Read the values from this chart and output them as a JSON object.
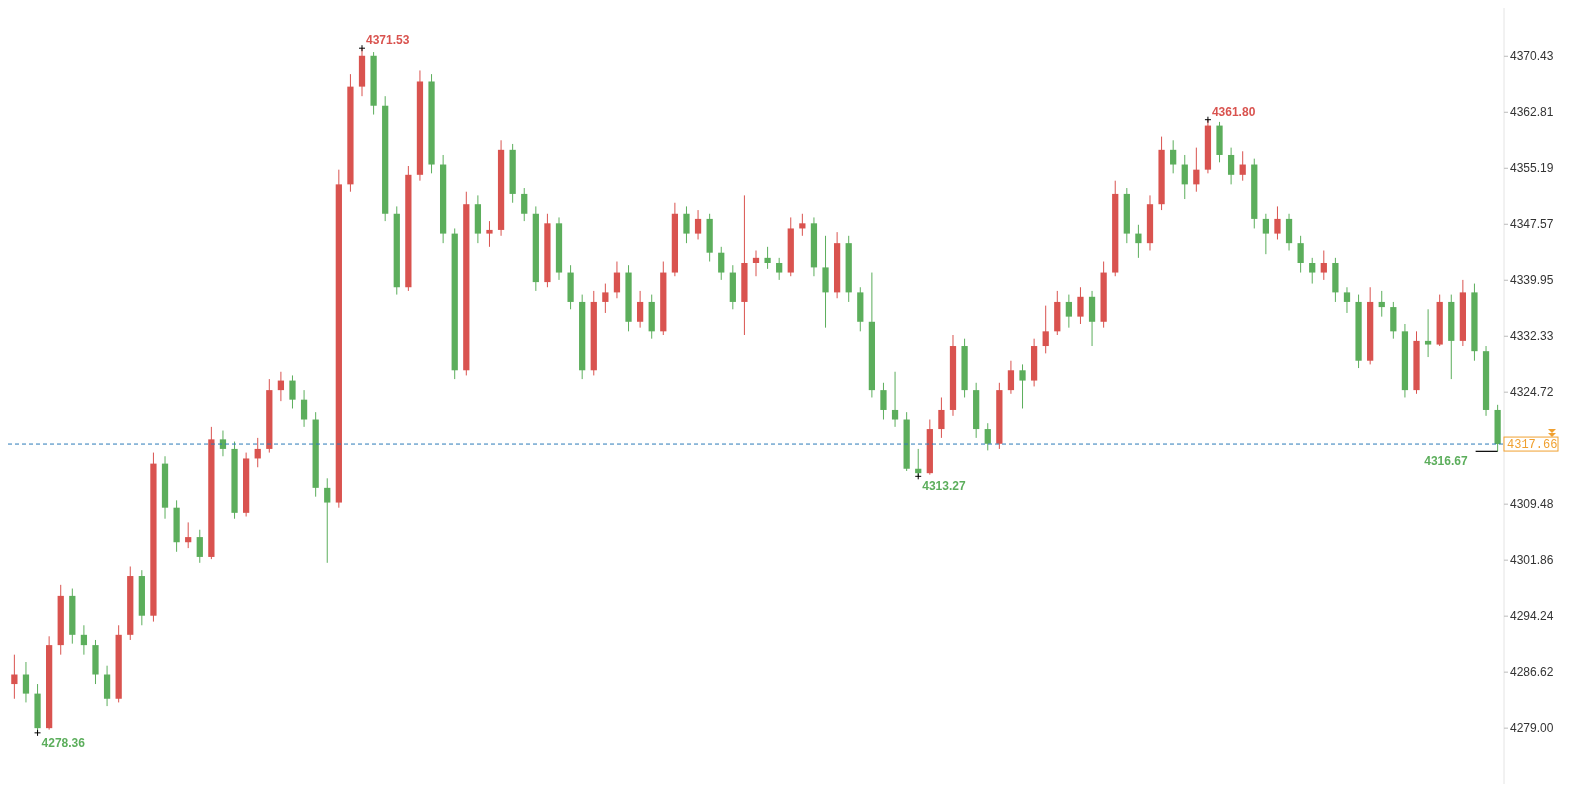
{
  "chart_data": {
    "type": "candlestick",
    "categories": [
      null,
      null,
      null,
      null,
      null,
      null,
      null,
      null,
      null,
      null,
      null,
      null,
      null,
      null,
      null,
      null,
      null,
      null,
      null,
      null,
      null,
      null,
      null,
      null,
      null,
      null,
      null,
      null,
      null,
      null,
      null,
      null,
      null,
      null,
      null,
      null,
      null,
      null,
      null,
      null,
      null,
      null,
      null,
      null,
      null,
      null,
      null,
      null,
      null,
      null,
      null,
      null,
      null,
      null,
      null,
      null,
      null,
      null,
      null,
      null,
      null,
      null,
      null,
      null,
      null,
      null,
      null,
      null,
      null,
      null,
      null,
      null,
      null,
      null,
      null,
      null,
      null,
      null,
      null,
      null,
      null,
      null,
      null,
      null,
      null,
      null,
      null,
      null,
      null,
      null,
      null,
      null,
      null,
      null,
      null,
      null,
      null,
      null,
      null,
      null,
      null,
      null,
      null,
      null,
      null,
      null,
      null,
      null,
      null,
      null,
      null,
      null,
      null,
      null,
      null,
      null,
      null,
      null,
      null,
      null,
      null,
      null,
      null,
      null,
      null,
      null,
      null,
      null,
      null
    ],
    "ohlc": [
      [
        4285.0,
        4289.0,
        4283.0,
        4286.3
      ],
      [
        4286.3,
        4288.0,
        4282.5,
        4283.7
      ],
      [
        4283.7,
        4285.0,
        4278.36,
        4279.0
      ],
      [
        4279.0,
        4291.5,
        4278.8,
        4290.3
      ],
      [
        4290.3,
        4298.5,
        4289.0,
        4297.0
      ],
      [
        4297.0,
        4298.0,
        4290.5,
        4291.7
      ],
      [
        4291.7,
        4293.0,
        4289.0,
        4290.3
      ],
      [
        4290.3,
        4291.0,
        4285.0,
        4286.3
      ],
      [
        4286.3,
        4287.5,
        4282.0,
        4283.0
      ],
      [
        4283.0,
        4293.0,
        4282.5,
        4291.7
      ],
      [
        4291.7,
        4301.0,
        4291.0,
        4299.7
      ],
      [
        4299.7,
        4300.5,
        4293.0,
        4294.3
      ],
      [
        4294.3,
        4316.5,
        4293.5,
        4315.0
      ],
      [
        4315.0,
        4316.0,
        4307.5,
        4309.0
      ],
      [
        4309.0,
        4310.0,
        4303.0,
        4304.3
      ],
      [
        4304.3,
        4307.0,
        4303.5,
        4305.0
      ],
      [
        4305.0,
        4306.0,
        4301.5,
        4302.3
      ],
      [
        4302.3,
        4320.0,
        4302.0,
        4318.3
      ],
      [
        4318.3,
        4319.5,
        4316.0,
        4317.0
      ],
      [
        4317.0,
        4318.0,
        4307.5,
        4308.3
      ],
      [
        4308.3,
        4316.5,
        4307.8,
        4315.7
      ],
      [
        4315.7,
        4318.5,
        4314.5,
        4317.0
      ],
      [
        4317.0,
        4326.5,
        4316.5,
        4325.0
      ],
      [
        4325.0,
        4327.5,
        4323.5,
        4326.3
      ],
      [
        4326.3,
        4327.0,
        4322.5,
        4323.7
      ],
      [
        4323.7,
        4325.0,
        4320.0,
        4321.0
      ],
      [
        4321.0,
        4322.0,
        4310.5,
        4311.7
      ],
      [
        4311.7,
        4313.0,
        4301.5,
        4309.7
      ],
      [
        4309.7,
        4355.0,
        4309.0,
        4353.0
      ],
      [
        4353.0,
        4368.0,
        4352.0,
        4366.3
      ],
      [
        4366.3,
        4371.53,
        4365.0,
        4370.5
      ],
      [
        4370.5,
        4371.0,
        4362.5,
        4363.7
      ],
      [
        4363.7,
        4365.0,
        4348.0,
        4349.0
      ],
      [
        4349.0,
        4350.0,
        4338.0,
        4339.0
      ],
      [
        4339.0,
        4355.5,
        4338.5,
        4354.3
      ],
      [
        4354.3,
        4368.5,
        4353.5,
        4367.0
      ],
      [
        4367.0,
        4368.0,
        4354.5,
        4355.7
      ],
      [
        4355.7,
        4357.0,
        4345.0,
        4346.3
      ],
      [
        4346.3,
        4347.0,
        4326.5,
        4327.7
      ],
      [
        4327.7,
        4352.0,
        4327.0,
        4350.3
      ],
      [
        4350.3,
        4351.5,
        4345.0,
        4346.3
      ],
      [
        4346.3,
        4348.0,
        4344.5,
        4346.8
      ],
      [
        4346.8,
        4359.0,
        4346.0,
        4357.7
      ],
      [
        4357.7,
        4358.5,
        4350.5,
        4351.7
      ],
      [
        4351.7,
        4352.5,
        4348.0,
        4349.0
      ],
      [
        4349.0,
        4350.0,
        4338.5,
        4339.7
      ],
      [
        4339.7,
        4349.0,
        4339.0,
        4347.7
      ],
      [
        4347.7,
        4348.5,
        4340.0,
        4341.0
      ],
      [
        4341.0,
        4342.0,
        4336.0,
        4337.0
      ],
      [
        4337.0,
        4338.0,
        4326.5,
        4327.7
      ],
      [
        4327.7,
        4338.5,
        4327.0,
        4337.0
      ],
      [
        4337.0,
        4339.5,
        4335.5,
        4338.3
      ],
      [
        4338.3,
        4342.5,
        4337.5,
        4341.0
      ],
      [
        4341.0,
        4342.0,
        4333.0,
        4334.3
      ],
      [
        4334.3,
        4338.5,
        4333.5,
        4337.0
      ],
      [
        4337.0,
        4338.0,
        4332.0,
        4333.0
      ],
      [
        4333.0,
        4342.5,
        4332.5,
        4341.0
      ],
      [
        4341.0,
        4350.5,
        4340.5,
        4349.0
      ],
      [
        4349.0,
        4350.0,
        4345.0,
        4346.3
      ],
      [
        4346.3,
        4349.5,
        4345.5,
        4348.3
      ],
      [
        4348.3,
        4349.0,
        4342.5,
        4343.7
      ],
      [
        4343.7,
        4344.5,
        4340.0,
        4341.0
      ],
      [
        4341.0,
        4342.0,
        4336.0,
        4337.0
      ],
      [
        4337.0,
        4351.5,
        4332.5,
        4342.3
      ],
      [
        4342.3,
        4344.0,
        4340.5,
        4343.0
      ],
      [
        4343.0,
        4344.5,
        4341.5,
        4342.3
      ],
      [
        4342.3,
        4343.0,
        4340.0,
        4341.0
      ],
      [
        4341.0,
        4348.5,
        4340.5,
        4347.0
      ],
      [
        4347.0,
        4349.0,
        4346.0,
        4347.7
      ],
      [
        4347.7,
        4348.5,
        4340.5,
        4341.7
      ],
      [
        4341.7,
        4346.0,
        4333.5,
        4338.3
      ],
      [
        4338.3,
        4346.5,
        4337.5,
        4345.0
      ],
      [
        4345.0,
        4346.0,
        4337.0,
        4338.3
      ],
      [
        4338.3,
        4339.0,
        4333.0,
        4334.3
      ],
      [
        4334.3,
        4341.0,
        4324.0,
        4325.0
      ],
      [
        4325.0,
        4326.0,
        4321.0,
        4322.3
      ],
      [
        4322.3,
        4327.5,
        4320.0,
        4321.0
      ],
      [
        4321.0,
        4322.0,
        4314.0,
        4314.3
      ],
      [
        4314.3,
        4317.0,
        4313.27,
        4313.7
      ],
      [
        4313.7,
        4321.0,
        4313.5,
        4319.7
      ],
      [
        4319.7,
        4324.0,
        4318.5,
        4322.3
      ],
      [
        4322.3,
        4332.5,
        4321.5,
        4331.0
      ],
      [
        4331.0,
        4332.0,
        4324.0,
        4325.0
      ],
      [
        4325.0,
        4326.0,
        4318.5,
        4319.7
      ],
      [
        4319.7,
        4320.5,
        4316.8,
        4317.7
      ],
      [
        4317.7,
        4326.0,
        4317.0,
        4325.0
      ],
      [
        4325.0,
        4329.0,
        4324.5,
        4327.7
      ],
      [
        4327.7,
        4328.5,
        4322.5,
        4326.3
      ],
      [
        4326.3,
        4332.0,
        4325.5,
        4331.0
      ],
      [
        4331.0,
        4336.5,
        4330.0,
        4333.0
      ],
      [
        4333.0,
        4338.5,
        4332.5,
        4337.0
      ],
      [
        4337.0,
        4338.0,
        4333.5,
        4335.0
      ],
      [
        4335.0,
        4339.0,
        4334.0,
        4337.7
      ],
      [
        4337.7,
        4338.5,
        4331.0,
        4334.3
      ],
      [
        4334.3,
        4342.5,
        4333.5,
        4341.0
      ],
      [
        4341.0,
        4353.5,
        4340.5,
        4351.7
      ],
      [
        4351.7,
        4352.5,
        4345.0,
        4346.3
      ],
      [
        4346.3,
        4347.5,
        4343.0,
        4345.0
      ],
      [
        4345.0,
        4351.5,
        4344.0,
        4350.3
      ],
      [
        4350.3,
        4359.5,
        4349.5,
        4357.7
      ],
      [
        4357.7,
        4359.0,
        4354.5,
        4355.7
      ],
      [
        4355.7,
        4357.0,
        4351.0,
        4353.0
      ],
      [
        4353.0,
        4358.0,
        4352.0,
        4355.0
      ],
      [
        4355.0,
        4361.8,
        4354.5,
        4361.0
      ],
      [
        4361.0,
        4361.5,
        4356.0,
        4357.0
      ],
      [
        4357.0,
        4358.0,
        4353.0,
        4354.3
      ],
      [
        4354.3,
        4357.5,
        4353.5,
        4355.7
      ],
      [
        4355.7,
        4356.5,
        4347.0,
        4348.3
      ],
      [
        4348.3,
        4349.0,
        4343.5,
        4346.3
      ],
      [
        4346.3,
        4350.0,
        4345.5,
        4348.3
      ],
      [
        4348.3,
        4349.0,
        4344.0,
        4345.0
      ],
      [
        4345.0,
        4346.0,
        4341.0,
        4342.3
      ],
      [
        4342.3,
        4343.0,
        4339.5,
        4341.0
      ],
      [
        4341.0,
        4344.0,
        4340.0,
        4342.3
      ],
      [
        4342.3,
        4343.0,
        4337.0,
        4338.3
      ],
      [
        4338.3,
        4339.0,
        4335.5,
        4337.0
      ],
      [
        4337.0,
        4338.0,
        4328.0,
        4329.0
      ],
      [
        4329.0,
        4339.0,
        4328.5,
        4337.0
      ],
      [
        4337.0,
        4338.5,
        4335.0,
        4336.3
      ],
      [
        4336.3,
        4337.0,
        4332.0,
        4333.0
      ],
      [
        4333.0,
        4334.0,
        4324.0,
        4325.0
      ],
      [
        4325.0,
        4333.0,
        4324.5,
        4331.7
      ],
      [
        4331.7,
        4336.0,
        4329.5,
        4331.2
      ],
      [
        4331.2,
        4338.0,
        4331.0,
        4337.0
      ],
      [
        4337.0,
        4338.0,
        4326.5,
        4331.7
      ],
      [
        4331.7,
        4340.0,
        4331.0,
        4338.3
      ],
      [
        4338.3,
        4339.5,
        4329.0,
        4330.3
      ],
      [
        4330.3,
        4331.0,
        4321.5,
        4322.3
      ],
      [
        4322.3,
        4323.0,
        4316.67,
        4317.66
      ]
    ],
    "colors": [
      "#d9534f",
      "#5cae5c",
      "#5cae5c",
      "#d9534f",
      "#d9534f",
      "#5cae5c",
      "#5cae5c",
      "#5cae5c",
      "#5cae5c",
      "#d9534f",
      "#d9534f",
      "#5cae5c",
      "#d9534f",
      "#5cae5c",
      "#5cae5c",
      "#d9534f",
      "#5cae5c",
      "#d9534f",
      "#5cae5c",
      "#5cae5c",
      "#d9534f",
      "#d9534f",
      "#d9534f",
      "#d9534f",
      "#5cae5c",
      "#5cae5c",
      "#5cae5c",
      "#5cae5c",
      "#d9534f",
      "#d9534f",
      "#d9534f",
      "#5cae5c",
      "#5cae5c",
      "#5cae5c",
      "#d9534f",
      "#d9534f",
      "#5cae5c",
      "#5cae5c",
      "#5cae5c",
      "#d9534f",
      "#5cae5c",
      "#d9534f",
      "#d9534f",
      "#5cae5c",
      "#5cae5c",
      "#5cae5c",
      "#d9534f",
      "#5cae5c",
      "#5cae5c",
      "#5cae5c",
      "#d9534f",
      "#d9534f",
      "#d9534f",
      "#5cae5c",
      "#d9534f",
      "#5cae5c",
      "#d9534f",
      "#d9534f",
      "#5cae5c",
      "#d9534f",
      "#5cae5c",
      "#5cae5c",
      "#5cae5c",
      "#d9534f",
      "#d9534f",
      "#5cae5c",
      "#5cae5c",
      "#d9534f",
      "#d9534f",
      "#5cae5c",
      "#5cae5c",
      "#d9534f",
      "#5cae5c",
      "#5cae5c",
      "#5cae5c",
      "#5cae5c",
      "#5cae5c",
      "#5cae5c",
      "#5cae5c",
      "#d9534f",
      "#d9534f",
      "#d9534f",
      "#5cae5c",
      "#5cae5c",
      "#5cae5c",
      "#d9534f",
      "#d9534f",
      "#5cae5c",
      "#d9534f",
      "#d9534f",
      "#d9534f",
      "#5cae5c",
      "#d9534f",
      "#5cae5c",
      "#d9534f",
      "#d9534f",
      "#5cae5c",
      "#5cae5c",
      "#d9534f",
      "#d9534f",
      "#5cae5c",
      "#5cae5c",
      "#d9534f",
      "#d9534f",
      "#5cae5c",
      "#5cae5c",
      "#d9534f",
      "#5cae5c",
      "#5cae5c",
      "#d9534f",
      "#5cae5c",
      "#5cae5c",
      "#5cae5c",
      "#d9534f",
      "#5cae5c",
      "#5cae5c",
      "#5cae5c",
      "#d9534f",
      "#5cae5c",
      "#5cae5c",
      "#5cae5c",
      "#d9534f",
      "#5cae5c",
      "#d9534f",
      "#5cae5c",
      "#d9534f",
      "#5cae5c",
      "#5cae5c",
      "#5cae5c"
    ],
    "ylim": [
      4271.4,
      4377.0
    ],
    "yticks": [
      {
        "value": 4279.0,
        "label": "4279.00"
      },
      {
        "value": 4286.62,
        "label": "4286.62"
      },
      {
        "value": 4294.24,
        "label": "4294.24"
      },
      {
        "value": 4301.86,
        "label": "4301.86"
      },
      {
        "value": 4309.48,
        "label": "4309.48"
      },
      {
        "value": 4324.72,
        "label": "4324.72"
      },
      {
        "value": 4332.33,
        "label": "4332.33"
      },
      {
        "value": 4339.95,
        "label": "4339.95"
      },
      {
        "value": 4347.57,
        "label": "4347.57"
      },
      {
        "value": 4355.19,
        "label": "4355.19"
      },
      {
        "value": 4362.81,
        "label": "4362.81"
      },
      {
        "value": 4370.43,
        "label": "4370.43"
      }
    ],
    "ref_lines": [
      {
        "axis": "y",
        "value": 4317.66,
        "label": "4317.66",
        "color": "#2b7bb9",
        "line_style": "dashed"
      }
    ],
    "annotations": [
      "4371.53",
      "4361.80",
      "4313.27",
      "4278.36",
      "4316.67"
    ],
    "grid": false
  }
}
